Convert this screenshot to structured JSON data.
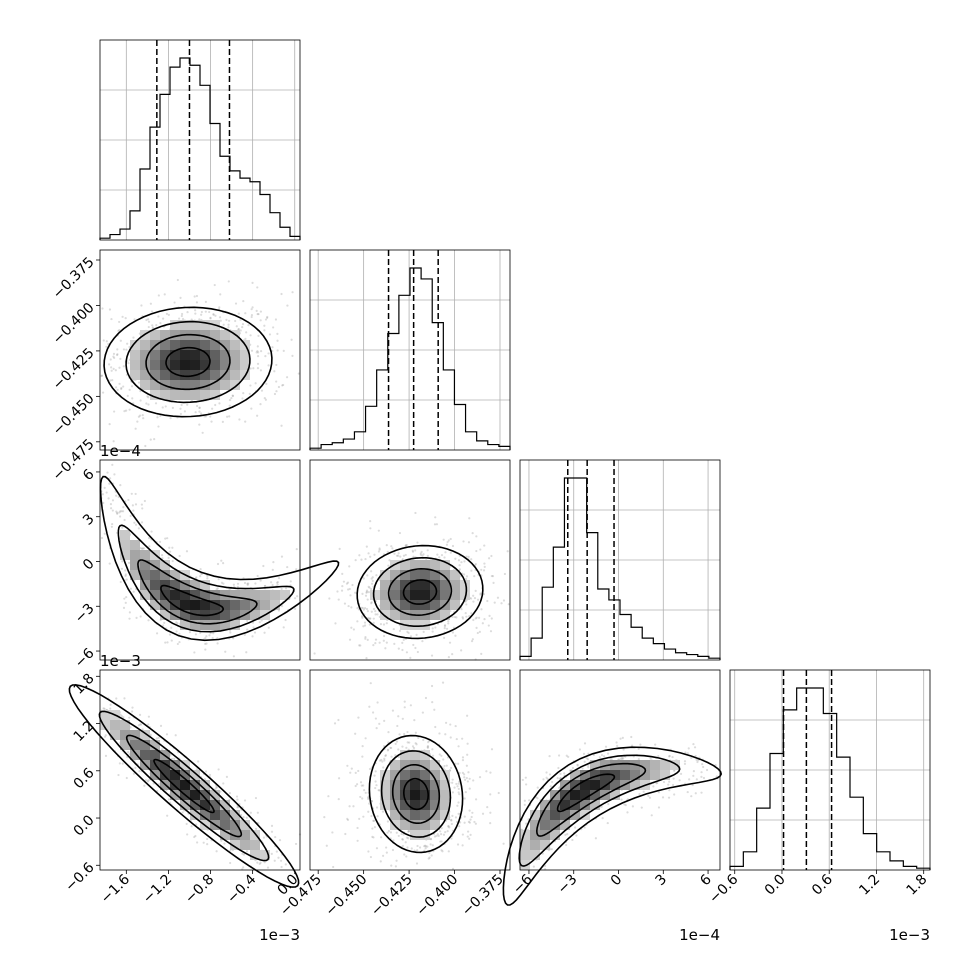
{
  "chart_data": {
    "type": "corner",
    "params": [
      {
        "range": [
          -0.00185,
          5e-05
        ],
        "ticks": [
          -0.0016,
          -0.0012,
          -0.0008,
          -0.0004,
          0.0
        ],
        "tick_labels": [
          "−1.6",
          "−1.2",
          "−0.8",
          "−0.4",
          "0.0"
        ],
        "offset_label": "1e−3",
        "quantiles": [
          -0.00131,
          -0.001,
          -0.00062
        ],
        "hist": [
          1,
          3,
          6,
          16,
          39,
          62,
          80,
          95,
          100,
          96,
          85,
          64,
          46,
          38,
          34,
          32,
          25,
          15,
          7,
          2
        ]
      },
      {
        "range": [
          -0.4795,
          -0.3695
        ],
        "ticks": [
          -0.475,
          -0.45,
          -0.425,
          -0.4,
          -0.375
        ],
        "tick_labels": [
          "−0.475",
          "−0.450",
          "−0.425",
          "−0.400",
          "−0.375"
        ],
        "offset_label": "",
        "quantiles": [
          -0.4363,
          -0.4225,
          -0.409
        ],
        "hist": [
          1,
          3,
          4,
          6,
          10,
          24,
          44,
          64,
          85,
          100,
          94,
          70,
          44,
          25,
          10,
          5,
          3,
          2
        ]
      },
      {
        "range": [
          -0.00066,
          0.00068
        ],
        "ticks": [
          -0.0006,
          -0.0003,
          0.0,
          0.0003,
          0.0006
        ],
        "tick_labels": [
          "−6",
          "−3",
          "0",
          "3",
          "6"
        ],
        "offset_label": "1e−4",
        "quantiles": [
          -0.00034,
          -0.00021,
          -3e-05
        ],
        "hist": [
          2,
          12,
          40,
          62,
          100,
          100,
          70,
          39,
          33,
          25,
          18,
          12,
          9,
          6,
          4,
          3,
          2,
          1
        ]
      },
      {
        "range": [
          -0.00066,
          0.00188
        ],
        "ticks": [
          -0.0006,
          0.0,
          0.0006,
          0.0012,
          0.0018
        ],
        "tick_labels": [
          "−0.6",
          "0.0",
          "0.6",
          "1.2",
          "1.8"
        ],
        "offset_label": "1e−3",
        "quantiles": [
          2e-05,
          0.00031,
          0.00063
        ],
        "hist": [
          2,
          10,
          34,
          64,
          88,
          100,
          100,
          86,
          62,
          40,
          20,
          10,
          5,
          2,
          1
        ]
      }
    ]
  }
}
